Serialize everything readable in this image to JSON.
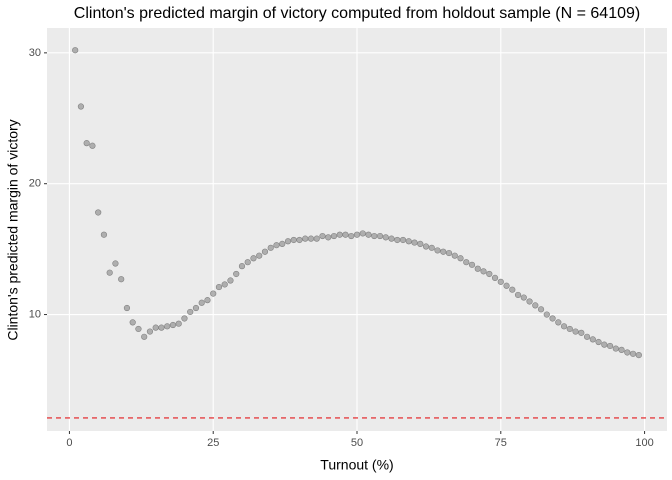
{
  "chart_data": {
    "type": "scatter",
    "title": "Clinton's predicted margin of victory computed from holdout sample (N = 64109)",
    "x_label": "Turnout (%)",
    "y_label": "Clinton's predicted margin of victory",
    "x": [
      1,
      2,
      3,
      4,
      5,
      6,
      7,
      8,
      9,
      10,
      11,
      12,
      13,
      14,
      15,
      16,
      17,
      18,
      19,
      20,
      21,
      22,
      23,
      24,
      25,
      26,
      27,
      28,
      29,
      30,
      31,
      32,
      33,
      34,
      35,
      36,
      37,
      38,
      39,
      40,
      41,
      42,
      43,
      44,
      45,
      46,
      47,
      48,
      49,
      50,
      51,
      52,
      53,
      54,
      55,
      56,
      57,
      58,
      59,
      60,
      61,
      62,
      63,
      64,
      65,
      66,
      67,
      68,
      69,
      70,
      71,
      72,
      73,
      74,
      75,
      76,
      77,
      78,
      79,
      80,
      81,
      82,
      83,
      84,
      85,
      86,
      87,
      88,
      89,
      90,
      91,
      92,
      93,
      94,
      95,
      96,
      97,
      98,
      99
    ],
    "series": [
      {
        "color": "#999999",
        "values": [
          30.2,
          25.9,
          23.1,
          22.9,
          17.8,
          16.1,
          13.2,
          13.9,
          12.7,
          10.5,
          9.4,
          8.9,
          8.3,
          8.7,
          9.0,
          9.0,
          9.1,
          9.2,
          9.3,
          9.7,
          10.2,
          10.5,
          10.9,
          11.1,
          11.6,
          12.1,
          12.3,
          12.6,
          13.1,
          13.7,
          14.0,
          14.3,
          14.5,
          14.8,
          15.1,
          15.3,
          15.4,
          15.6,
          15.7,
          15.7,
          15.8,
          15.8,
          15.8,
          16.0,
          15.9,
          16.0,
          16.1,
          16.1,
          16.0,
          16.1,
          16.2,
          16.1,
          16.0,
          16.0,
          15.9,
          15.8,
          15.7,
          15.7,
          15.6,
          15.5,
          15.4,
          15.2,
          15.1,
          14.9,
          14.8,
          14.7,
          14.5,
          14.3,
          14.0,
          13.8,
          13.5,
          13.3,
          13.1,
          12.8,
          12.5,
          12.2,
          11.9,
          11.5,
          11.3,
          11.0,
          10.7,
          10.4,
          10.0,
          9.7,
          9.4,
          9.1,
          8.9,
          8.7,
          8.6,
          8.3,
          8.1,
          7.9,
          7.7,
          7.6,
          7.4,
          7.3,
          7.1,
          7.0,
          6.9
        ]
      }
    ],
    "hline": {
      "value": 2.1,
      "color": "#e41a1c",
      "linestyle": "dashed"
    },
    "xlim": [
      -3.9,
      103.9
    ],
    "ylim": [
      1.1,
      31.9
    ],
    "xticks": [
      0,
      25,
      50,
      75,
      100
    ],
    "yticks": [
      10,
      20,
      30
    ],
    "grid": true,
    "panel_color": "#ebebeb"
  }
}
